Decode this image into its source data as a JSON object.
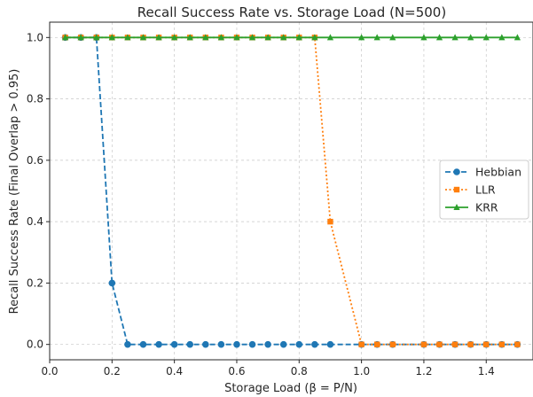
{
  "chart_data": {
    "type": "line",
    "title": "Recall Success Rate vs. Storage Load (N=500)",
    "xlabel": "Storage Load (β = P/N)",
    "ylabel": "Recall Success Rate (Final Overlap > 0.95)",
    "xlim": [
      0.0,
      1.55
    ],
    "ylim": [
      -0.05,
      1.05
    ],
    "xticks": [
      0.0,
      0.2,
      0.4,
      0.6,
      0.8,
      1.0,
      1.2,
      1.4
    ],
    "xtick_labels": [
      "0.0",
      "0.2",
      "0.4",
      "0.6",
      "0.8",
      "1.0",
      "1.2",
      "1.4"
    ],
    "yticks": [
      0.0,
      0.2,
      0.4,
      0.6,
      0.8,
      1.0
    ],
    "ytick_labels": [
      "0.0",
      "0.2",
      "0.4",
      "0.6",
      "0.8",
      "1.0"
    ],
    "grid": true,
    "legend_position": "center-right",
    "x": [
      0.05,
      0.1,
      0.15,
      0.2,
      0.25,
      0.3,
      0.35,
      0.4,
      0.45,
      0.5,
      0.55,
      0.6,
      0.65,
      0.7,
      0.75,
      0.8,
      0.85,
      0.9,
      0.95,
      1.0,
      1.05,
      1.1,
      1.15,
      1.2,
      1.25,
      1.3,
      1.35,
      1.4,
      1.45,
      1.5
    ],
    "series": [
      {
        "name": "Hebbian",
        "color": "#1f77b4",
        "linestyle": "dashed",
        "marker": "circle",
        "x": [
          0.05,
          0.1,
          0.15,
          0.2,
          0.25,
          0.3,
          0.35,
          0.4,
          0.45,
          0.5,
          0.55,
          0.6,
          0.65,
          0.7,
          0.75,
          0.8,
          0.85,
          0.9,
          1.0,
          1.05,
          1.1,
          1.2,
          1.25,
          1.3,
          1.35,
          1.4,
          1.45,
          1.5
        ],
        "values": [
          1.0,
          1.0,
          1.0,
          0.2,
          0.0,
          0.0,
          0.0,
          0.0,
          0.0,
          0.0,
          0.0,
          0.0,
          0.0,
          0.0,
          0.0,
          0.0,
          0.0,
          0.0,
          0.0,
          0.0,
          0.0,
          0.0,
          0.0,
          0.0,
          0.0,
          0.0,
          0.0,
          0.0
        ]
      },
      {
        "name": "LLR",
        "color": "#ff7f0e",
        "linestyle": "dotted",
        "marker": "square",
        "x": [
          0.05,
          0.1,
          0.15,
          0.2,
          0.25,
          0.3,
          0.35,
          0.4,
          0.45,
          0.5,
          0.55,
          0.6,
          0.65,
          0.7,
          0.75,
          0.8,
          0.85,
          0.9,
          1.0,
          1.05,
          1.1,
          1.2,
          1.25,
          1.3,
          1.35,
          1.4,
          1.45,
          1.5
        ],
        "values": [
          1.0,
          1.0,
          1.0,
          1.0,
          1.0,
          1.0,
          1.0,
          1.0,
          1.0,
          1.0,
          1.0,
          1.0,
          1.0,
          1.0,
          1.0,
          1.0,
          1.0,
          0.4,
          0.0,
          0.0,
          0.0,
          0.0,
          0.0,
          0.0,
          0.0,
          0.0,
          0.0,
          0.0
        ]
      },
      {
        "name": "KRR",
        "color": "#2ca02c",
        "linestyle": "solid",
        "marker": "triangle",
        "x": [
          0.05,
          0.1,
          0.15,
          0.2,
          0.25,
          0.3,
          0.35,
          0.4,
          0.45,
          0.5,
          0.55,
          0.6,
          0.65,
          0.7,
          0.75,
          0.8,
          0.85,
          0.9,
          1.0,
          1.05,
          1.1,
          1.2,
          1.25,
          1.3,
          1.35,
          1.4,
          1.45,
          1.5
        ],
        "values": [
          1.0,
          1.0,
          1.0,
          1.0,
          1.0,
          1.0,
          1.0,
          1.0,
          1.0,
          1.0,
          1.0,
          1.0,
          1.0,
          1.0,
          1.0,
          1.0,
          1.0,
          1.0,
          1.0,
          1.0,
          1.0,
          1.0,
          1.0,
          1.0,
          1.0,
          1.0,
          1.0,
          1.0
        ]
      }
    ]
  }
}
